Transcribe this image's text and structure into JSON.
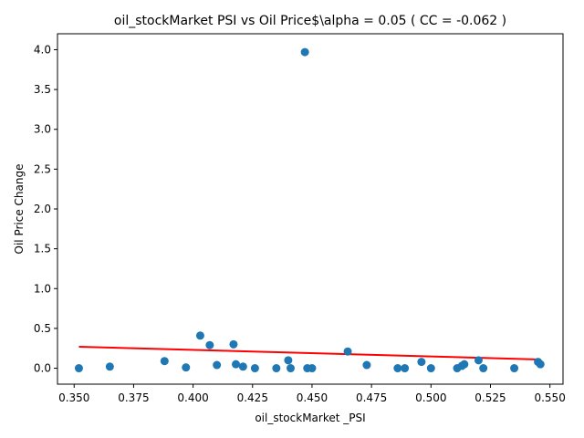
{
  "chart_data": {
    "type": "scatter",
    "title": "oil_stockMarket  PSI vs Oil Price$\\alpha = 0.05 ( CC = -0.062 )",
    "xlabel": "oil_stockMarket _PSI",
    "ylabel": "Oil Price Change",
    "xlim": [
      0.343,
      0.5555
    ],
    "ylim": [
      -0.2,
      4.2
    ],
    "xticks": [
      0.35,
      0.375,
      0.4,
      0.425,
      0.45,
      0.475,
      0.5,
      0.525,
      0.55
    ],
    "xtick_labels": [
      "0.350",
      "0.375",
      "0.400",
      "0.425",
      "0.450",
      "0.475",
      "0.500",
      "0.525",
      "0.550"
    ],
    "yticks": [
      0.0,
      0.5,
      1.0,
      1.5,
      2.0,
      2.5,
      3.0,
      3.5,
      4.0
    ],
    "ytick_labels": [
      "0.0",
      "0.5",
      "1.0",
      "1.5",
      "2.0",
      "2.5",
      "3.0",
      "3.5",
      "4.0"
    ],
    "grid": false,
    "points_color": "#1f77b4",
    "trend_color": "#ff0000",
    "points": [
      {
        "x": 0.352,
        "y": 0.0
      },
      {
        "x": 0.365,
        "y": 0.02
      },
      {
        "x": 0.388,
        "y": 0.09
      },
      {
        "x": 0.397,
        "y": 0.01
      },
      {
        "x": 0.403,
        "y": 0.41
      },
      {
        "x": 0.407,
        "y": 0.29
      },
      {
        "x": 0.41,
        "y": 0.04
      },
      {
        "x": 0.417,
        "y": 0.3
      },
      {
        "x": 0.418,
        "y": 0.05
      },
      {
        "x": 0.421,
        "y": 0.02
      },
      {
        "x": 0.426,
        "y": 0.0
      },
      {
        "x": 0.435,
        "y": 0.0
      },
      {
        "x": 0.44,
        "y": 0.1
      },
      {
        "x": 0.441,
        "y": 0.0
      },
      {
        "x": 0.447,
        "y": 3.97
      },
      {
        "x": 0.448,
        "y": 0.0
      },
      {
        "x": 0.45,
        "y": 0.0
      },
      {
        "x": 0.465,
        "y": 0.21
      },
      {
        "x": 0.473,
        "y": 0.04
      },
      {
        "x": 0.486,
        "y": 0.0
      },
      {
        "x": 0.489,
        "y": 0.0
      },
      {
        "x": 0.496,
        "y": 0.08
      },
      {
        "x": 0.5,
        "y": 0.0
      },
      {
        "x": 0.511,
        "y": 0.0
      },
      {
        "x": 0.513,
        "y": 0.03
      },
      {
        "x": 0.514,
        "y": 0.05
      },
      {
        "x": 0.52,
        "y": 0.1
      },
      {
        "x": 0.522,
        "y": 0.0
      },
      {
        "x": 0.535,
        "y": 0.0
      },
      {
        "x": 0.545,
        "y": 0.08
      },
      {
        "x": 0.546,
        "y": 0.05
      }
    ],
    "trend": {
      "x": [
        0.352,
        0.546
      ],
      "y": [
        0.27,
        0.11
      ]
    }
  }
}
